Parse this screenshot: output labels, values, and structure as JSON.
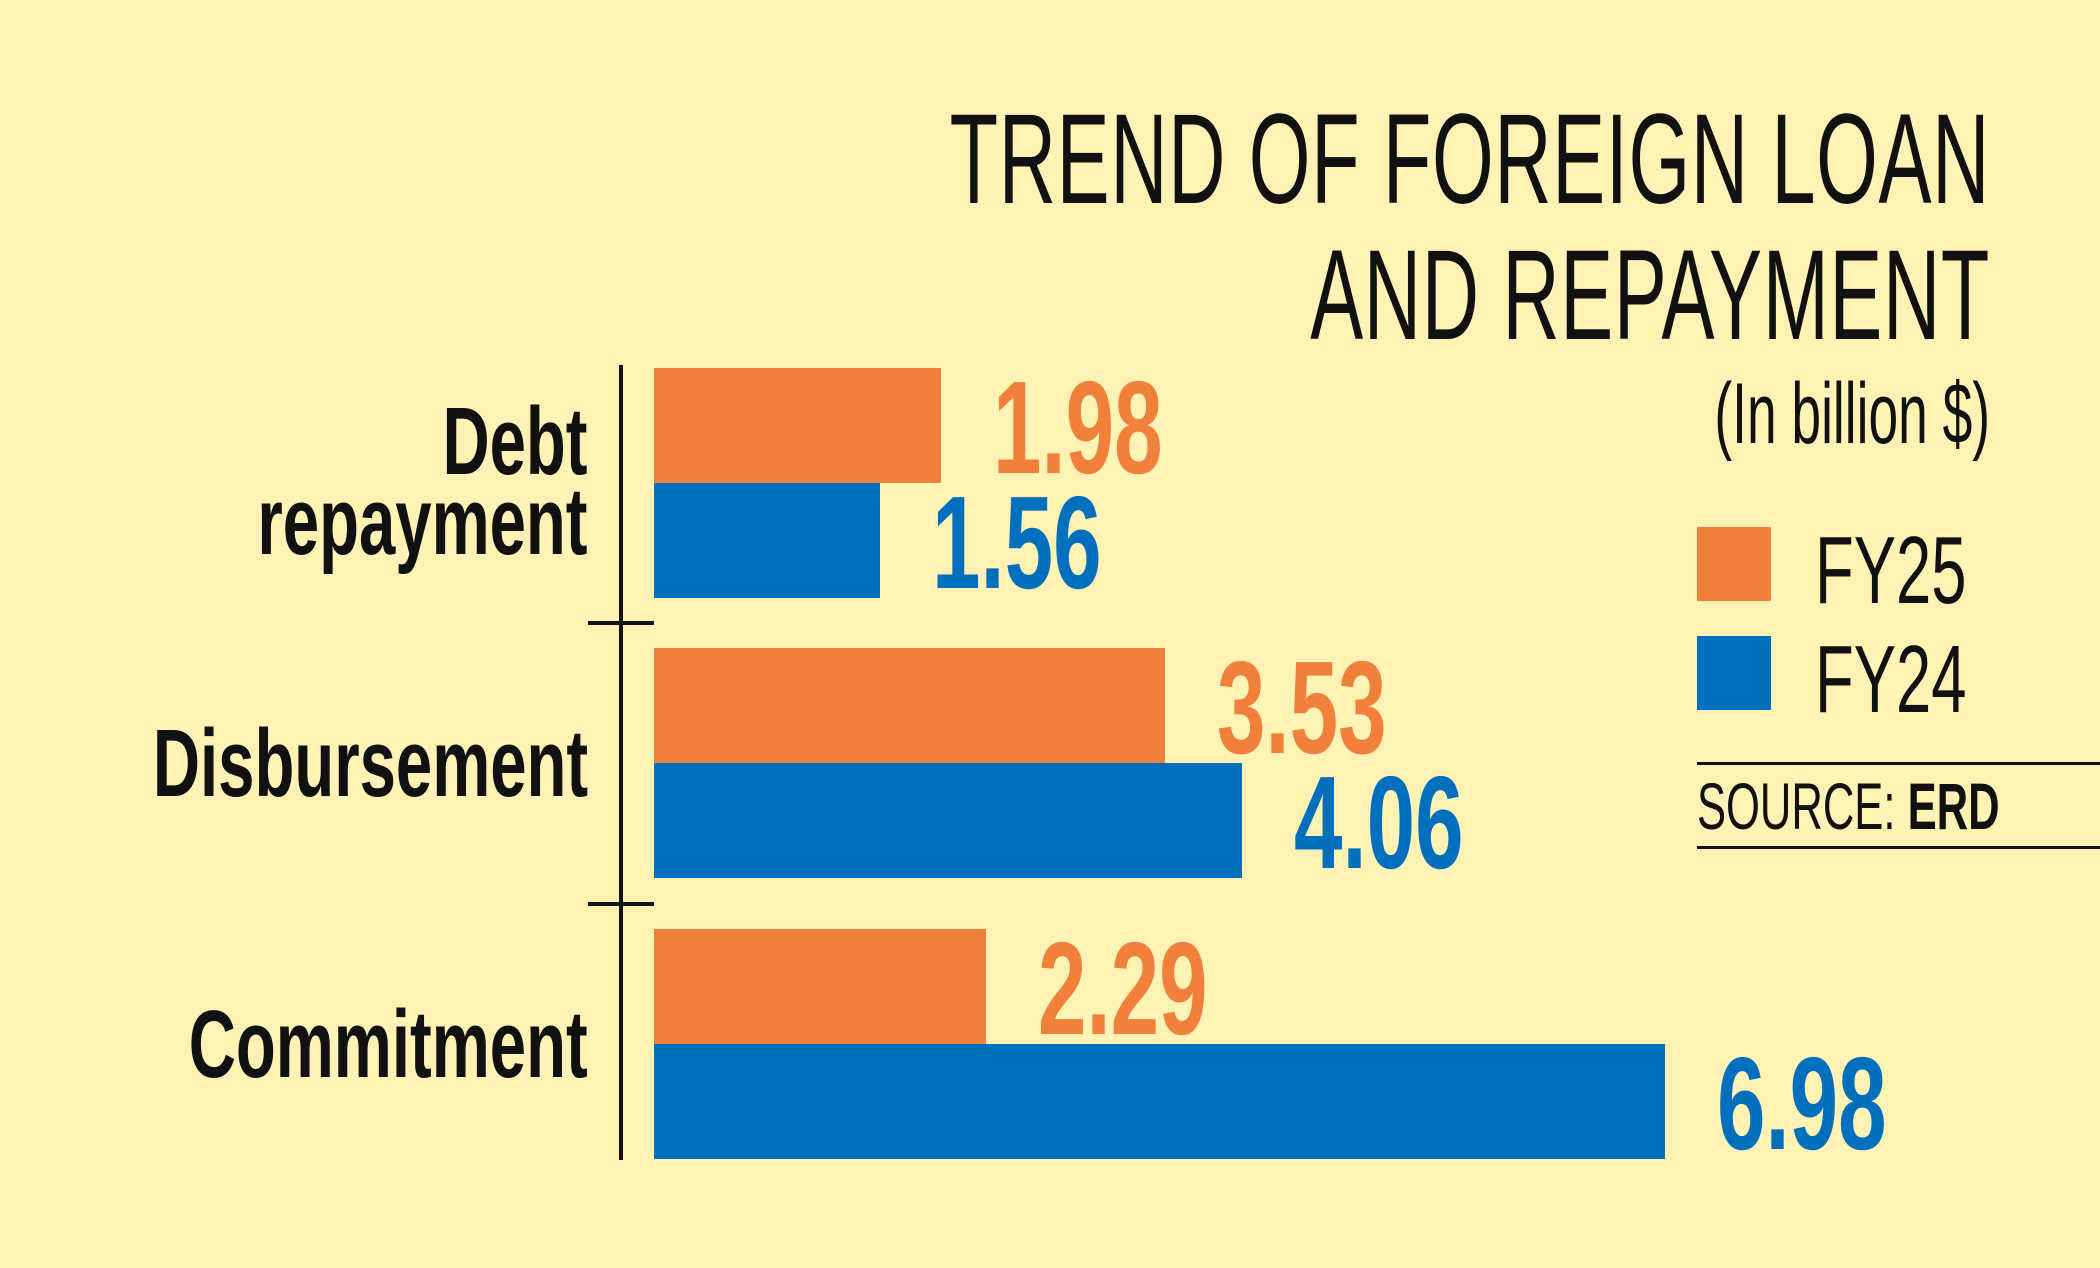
{
  "chart_data": {
    "type": "bar",
    "orientation": "horizontal",
    "title": "TREND OF FOREIGN LOAN AND REPAYMENT",
    "title_lines": [
      "TREND OF FOREIGN LOAN",
      "AND REPAYMENT"
    ],
    "subtitle": "(In billion $)",
    "unit": "billion $",
    "categories": [
      "Debt repayment",
      "Disbursement",
      "Commitment"
    ],
    "category_lines": [
      [
        "Debt",
        "repayment"
      ],
      [
        "Disbursement"
      ],
      [
        "Commitment"
      ]
    ],
    "series": [
      {
        "name": "FY25",
        "color": "#F0803A",
        "values": [
          1.98,
          3.53,
          2.29
        ],
        "labels": [
          "1.98",
          "3.53",
          "2.29"
        ]
      },
      {
        "name": "FY24",
        "color": "#0070BE",
        "values": [
          1.56,
          4.06,
          6.98
        ],
        "labels": [
          "1.56",
          "4.06",
          "6.98"
        ]
      }
    ],
    "xlabel": "",
    "ylabel": "",
    "xlim": [
      0,
      7
    ],
    "grid": false,
    "x_axis_visible": false,
    "data_labels": true,
    "legend": {
      "position": "right",
      "entries": [
        "FY25",
        "FY24"
      ]
    },
    "source": "ERD"
  },
  "source_line": {
    "prefix": "SOURCE:",
    "name": "ERD"
  },
  "colors": {
    "background": "#FFF2B5",
    "fy25": "#F0803A",
    "fy24": "#0070BE",
    "text": "#111111"
  }
}
